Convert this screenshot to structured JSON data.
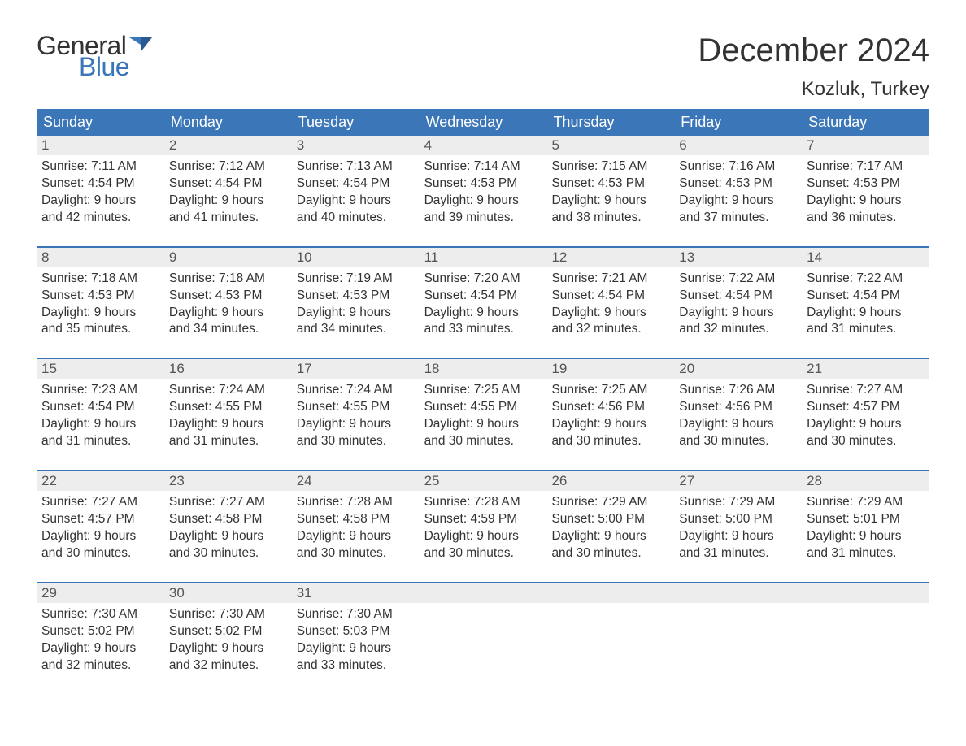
{
  "logo": {
    "text1": "General",
    "text2": "Blue",
    "flag_color": "#3b76b8"
  },
  "title": "December 2024",
  "location": "Kozluk, Turkey",
  "colors": {
    "header_bg": "#3b76b8",
    "header_text": "#ffffff",
    "daynum_bg": "#ededed",
    "text": "#333333",
    "week_border": "#3b76b8"
  },
  "day_headers": [
    "Sunday",
    "Monday",
    "Tuesday",
    "Wednesday",
    "Thursday",
    "Friday",
    "Saturday"
  ],
  "labels": {
    "sunrise": "Sunrise:",
    "sunset": "Sunset:",
    "daylight": "Daylight:"
  },
  "weeks": [
    [
      {
        "num": "1",
        "sunrise": "7:11 AM",
        "sunset": "4:54 PM",
        "daylight": "9 hours and 42 minutes."
      },
      {
        "num": "2",
        "sunrise": "7:12 AM",
        "sunset": "4:54 PM",
        "daylight": "9 hours and 41 minutes."
      },
      {
        "num": "3",
        "sunrise": "7:13 AM",
        "sunset": "4:54 PM",
        "daylight": "9 hours and 40 minutes."
      },
      {
        "num": "4",
        "sunrise": "7:14 AM",
        "sunset": "4:53 PM",
        "daylight": "9 hours and 39 minutes."
      },
      {
        "num": "5",
        "sunrise": "7:15 AM",
        "sunset": "4:53 PM",
        "daylight": "9 hours and 38 minutes."
      },
      {
        "num": "6",
        "sunrise": "7:16 AM",
        "sunset": "4:53 PM",
        "daylight": "9 hours and 37 minutes."
      },
      {
        "num": "7",
        "sunrise": "7:17 AM",
        "sunset": "4:53 PM",
        "daylight": "9 hours and 36 minutes."
      }
    ],
    [
      {
        "num": "8",
        "sunrise": "7:18 AM",
        "sunset": "4:53 PM",
        "daylight": "9 hours and 35 minutes."
      },
      {
        "num": "9",
        "sunrise": "7:18 AM",
        "sunset": "4:53 PM",
        "daylight": "9 hours and 34 minutes."
      },
      {
        "num": "10",
        "sunrise": "7:19 AM",
        "sunset": "4:53 PM",
        "daylight": "9 hours and 34 minutes."
      },
      {
        "num": "11",
        "sunrise": "7:20 AM",
        "sunset": "4:54 PM",
        "daylight": "9 hours and 33 minutes."
      },
      {
        "num": "12",
        "sunrise": "7:21 AM",
        "sunset": "4:54 PM",
        "daylight": "9 hours and 32 minutes."
      },
      {
        "num": "13",
        "sunrise": "7:22 AM",
        "sunset": "4:54 PM",
        "daylight": "9 hours and 32 minutes."
      },
      {
        "num": "14",
        "sunrise": "7:22 AM",
        "sunset": "4:54 PM",
        "daylight": "9 hours and 31 minutes."
      }
    ],
    [
      {
        "num": "15",
        "sunrise": "7:23 AM",
        "sunset": "4:54 PM",
        "daylight": "9 hours and 31 minutes."
      },
      {
        "num": "16",
        "sunrise": "7:24 AM",
        "sunset": "4:55 PM",
        "daylight": "9 hours and 31 minutes."
      },
      {
        "num": "17",
        "sunrise": "7:24 AM",
        "sunset": "4:55 PM",
        "daylight": "9 hours and 30 minutes."
      },
      {
        "num": "18",
        "sunrise": "7:25 AM",
        "sunset": "4:55 PM",
        "daylight": "9 hours and 30 minutes."
      },
      {
        "num": "19",
        "sunrise": "7:25 AM",
        "sunset": "4:56 PM",
        "daylight": "9 hours and 30 minutes."
      },
      {
        "num": "20",
        "sunrise": "7:26 AM",
        "sunset": "4:56 PM",
        "daylight": "9 hours and 30 minutes."
      },
      {
        "num": "21",
        "sunrise": "7:27 AM",
        "sunset": "4:57 PM",
        "daylight": "9 hours and 30 minutes."
      }
    ],
    [
      {
        "num": "22",
        "sunrise": "7:27 AM",
        "sunset": "4:57 PM",
        "daylight": "9 hours and 30 minutes."
      },
      {
        "num": "23",
        "sunrise": "7:27 AM",
        "sunset": "4:58 PM",
        "daylight": "9 hours and 30 minutes."
      },
      {
        "num": "24",
        "sunrise": "7:28 AM",
        "sunset": "4:58 PM",
        "daylight": "9 hours and 30 minutes."
      },
      {
        "num": "25",
        "sunrise": "7:28 AM",
        "sunset": "4:59 PM",
        "daylight": "9 hours and 30 minutes."
      },
      {
        "num": "26",
        "sunrise": "7:29 AM",
        "sunset": "5:00 PM",
        "daylight": "9 hours and 30 minutes."
      },
      {
        "num": "27",
        "sunrise": "7:29 AM",
        "sunset": "5:00 PM",
        "daylight": "9 hours and 31 minutes."
      },
      {
        "num": "28",
        "sunrise": "7:29 AM",
        "sunset": "5:01 PM",
        "daylight": "9 hours and 31 minutes."
      }
    ],
    [
      {
        "num": "29",
        "sunrise": "7:30 AM",
        "sunset": "5:02 PM",
        "daylight": "9 hours and 32 minutes."
      },
      {
        "num": "30",
        "sunrise": "7:30 AM",
        "sunset": "5:02 PM",
        "daylight": "9 hours and 32 minutes."
      },
      {
        "num": "31",
        "sunrise": "7:30 AM",
        "sunset": "5:03 PM",
        "daylight": "9 hours and 33 minutes."
      },
      {
        "empty": true
      },
      {
        "empty": true
      },
      {
        "empty": true
      },
      {
        "empty": true
      }
    ]
  ]
}
